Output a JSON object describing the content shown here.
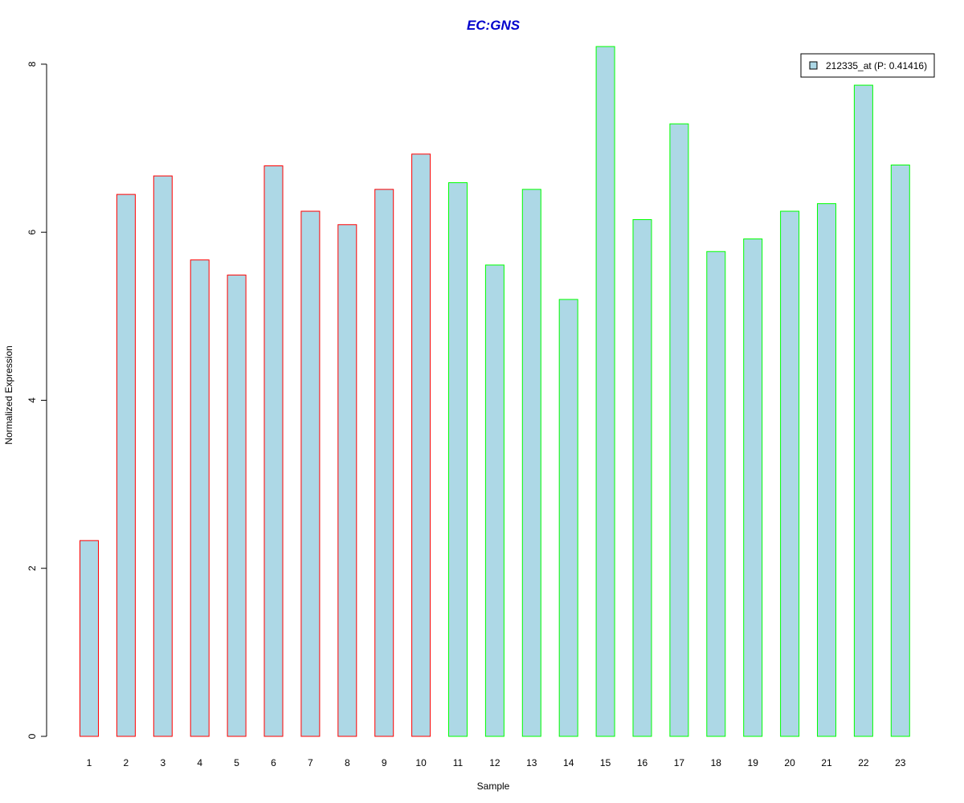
{
  "chart_data": {
    "type": "bar",
    "title": "EC:GNS",
    "xlabel": "Sample",
    "ylabel": "Normalized Expression",
    "ylim": [
      0,
      8.2
    ],
    "yticks": [
      "0",
      "2",
      "4",
      "6",
      "8"
    ],
    "categories": [
      "1",
      "2",
      "3",
      "4",
      "5",
      "6",
      "7",
      "8",
      "9",
      "10",
      "11",
      "12",
      "13",
      "14",
      "15",
      "16",
      "17",
      "18",
      "19",
      "20",
      "21",
      "22",
      "23"
    ],
    "series": [
      {
        "name": "212335_at (P: 0.41416)",
        "values": [
          2.33,
          6.45,
          6.67,
          5.67,
          5.49,
          6.79,
          6.25,
          6.09,
          6.51,
          6.93,
          6.59,
          5.61,
          6.51,
          5.2,
          8.21,
          6.15,
          7.29,
          5.77,
          5.92,
          6.25,
          6.34,
          7.75,
          6.8
        ]
      }
    ],
    "groups": [
      {
        "from": 0,
        "to": 9,
        "border_color": "#ff0000"
      },
      {
        "from": 10,
        "to": 22,
        "border_color": "#00ff00"
      }
    ],
    "colors": {
      "bar_fill": "#add8e6",
      "title": "#0000cc",
      "axis": "#000000"
    },
    "legend_position": "top-right",
    "grid": false
  }
}
